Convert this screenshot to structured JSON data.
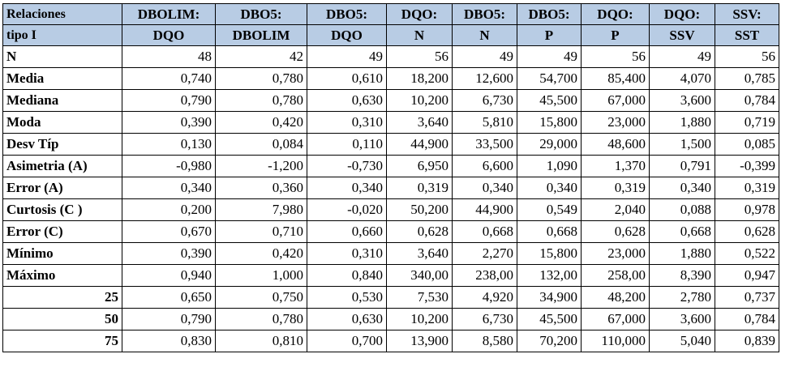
{
  "columns": [
    {
      "line1": "Relaciones",
      "line2": "tipo I"
    },
    {
      "line1": "DBOLIM:",
      "line2": "DQO"
    },
    {
      "line1": "DBO5:",
      "line2": "DBOLIM"
    },
    {
      "line1": "DBO5:",
      "line2": "DQO"
    },
    {
      "line1": "DQO:",
      "line2": "N"
    },
    {
      "line1": "DBO5:",
      "line2": "N"
    },
    {
      "line1": "DBO5:",
      "line2": "P"
    },
    {
      "line1": "DQO:",
      "line2": "P"
    },
    {
      "line1": "DQO:",
      "line2": "SSV"
    },
    {
      "line1": "SSV:",
      "line2": "SST"
    }
  ],
  "rows": [
    {
      "label": "N",
      "align": "left",
      "values": [
        "48",
        "42",
        "49",
        "56",
        "49",
        "49",
        "56",
        "49",
        "56"
      ]
    },
    {
      "label": "Media",
      "align": "left",
      "values": [
        "0,740",
        "0,780",
        "0,610",
        "18,200",
        "12,600",
        "54,700",
        "85,400",
        "4,070",
        "0,785"
      ]
    },
    {
      "label": "Mediana",
      "align": "left",
      "values": [
        "0,790",
        "0,780",
        "0,630",
        "10,200",
        "6,730",
        "45,500",
        "67,000",
        "3,600",
        "0,784"
      ]
    },
    {
      "label": "Moda",
      "align": "left",
      "values": [
        "0,390",
        "0,420",
        "0,310",
        "3,640",
        "5,810",
        "15,800",
        "23,000",
        "1,880",
        "0,719"
      ]
    },
    {
      "label": "Desv Típ",
      "align": "left",
      "values": [
        "0,130",
        "0,084",
        "0,110",
        "44,900",
        "33,500",
        "29,000",
        "48,600",
        "1,500",
        "0,085"
      ]
    },
    {
      "label": "Asimetria (A)",
      "align": "left",
      "values": [
        "-0,980",
        "-1,200",
        "-0,730",
        "6,950",
        "6,600",
        "1,090",
        "1,370",
        "0,791",
        "-0,399"
      ]
    },
    {
      "label": "Error (A)",
      "align": "left",
      "values": [
        "0,340",
        "0,360",
        "0,340",
        "0,319",
        "0,340",
        "0,340",
        "0,319",
        "0,340",
        "0,319"
      ]
    },
    {
      "label": "Curtosis (C )",
      "align": "left",
      "values": [
        "0,200",
        "7,980",
        "-0,020",
        "50,200",
        "44,900",
        "0,549",
        "2,040",
        "0,088",
        "0,978"
      ]
    },
    {
      "label": "Error (C)",
      "align": "left",
      "values": [
        "0,670",
        "0,710",
        "0,660",
        "0,628",
        "0,668",
        "0,668",
        "0,628",
        "0,668",
        "0,628"
      ]
    },
    {
      "label": "Mínimo",
      "align": "left",
      "values": [
        "0,390",
        "0,420",
        "0,310",
        "3,640",
        "2,270",
        "15,800",
        "23,000",
        "1,880",
        "0,522"
      ]
    },
    {
      "label": "Máximo",
      "align": "left",
      "values": [
        "0,940",
        "1,000",
        "0,840",
        "340,00",
        "238,00",
        "132,00",
        "258,00",
        "8,390",
        "0,947"
      ]
    },
    {
      "label": "25",
      "align": "right",
      "values": [
        "0,650",
        "0,750",
        "0,530",
        "7,530",
        "4,920",
        "34,900",
        "48,200",
        "2,780",
        "0,737"
      ]
    },
    {
      "label": "50",
      "align": "right",
      "values": [
        "0,790",
        "0,780",
        "0,630",
        "10,200",
        "6,730",
        "45,500",
        "67,000",
        "3,600",
        "0,784"
      ]
    },
    {
      "label": "75",
      "align": "right",
      "values": [
        "0,830",
        "0,810",
        "0,700",
        "13,900",
        "8,580",
        "70,200",
        "110,000",
        "5,040",
        "0,839"
      ]
    }
  ],
  "header_bg": "#b8cce4"
}
